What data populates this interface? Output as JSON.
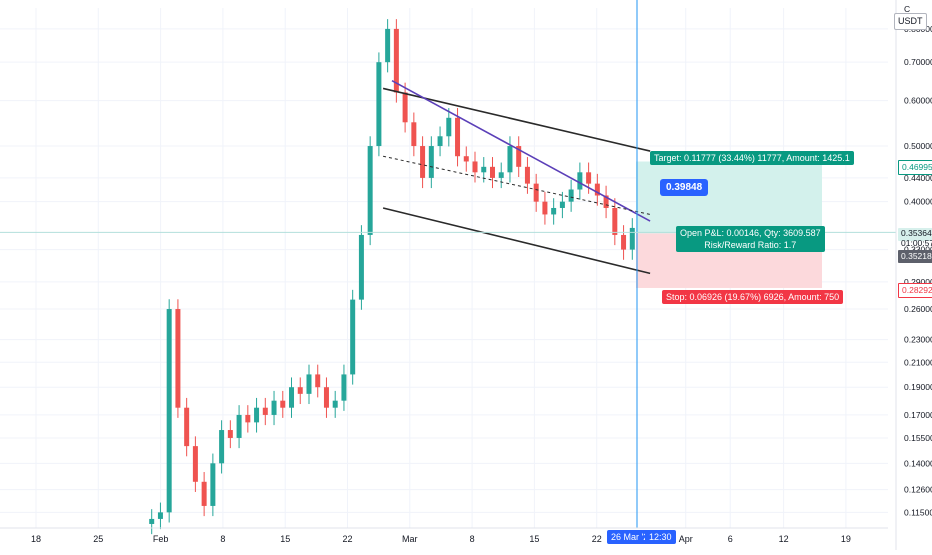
{
  "currency": "USDT",
  "currency_symbol": "C",
  "price_axis_ticks": [
    "0.80000",
    "0.70000",
    "0.60000",
    "0.50000",
    "0.44000",
    "0.40000",
    "0.33000",
    "0.29000",
    "0.26000",
    "0.23000",
    "0.21000",
    "0.19000",
    "0.17000",
    "0.15500",
    "0.14000",
    "0.12600",
    "0.11500"
  ],
  "time_axis_ticks": [
    "18",
    "25",
    "Feb",
    "8",
    "15",
    "22",
    "Mar",
    "8",
    "15",
    "22",
    "Apr",
    "6",
    "12",
    "19"
  ],
  "crosshair": {
    "date_label": "26 Mar '21",
    "time_label": "12:30"
  },
  "price_tags": {
    "target": "0.46995",
    "current": "0.35364",
    "countdown": "01:00:57",
    "entry": "0.35218",
    "stop": "0.28292"
  },
  "position": {
    "target_label": "Target: 0.11777 (33.44%) 11777, Amount: 1425.1",
    "stop_label": "Stop: 0.06926 (19.67%) 6926, Amount: 750",
    "pnl_label": "Open P&L: 0.00146, Qty: 3609.587",
    "rr_label": "Risk/Reward Ratio: 1.7",
    "target_price": 0.46995,
    "entry_price": 0.35218,
    "stop_price": 0.28292
  },
  "callout_value": "0.39848",
  "colors": {
    "up": "#26a69a",
    "down": "#ef5350",
    "target_zone": "#d3f1ec",
    "stop_zone": "#fcd9dc",
    "crosshair": "#2196f3",
    "trendline": "#5b3fb8",
    "channel": "#2a2a2a",
    "accent": "#2962ff"
  },
  "chart_data": {
    "type": "candlestick",
    "pair": "USDT",
    "scale": "log",
    "ylim": [
      0.108,
      0.87
    ],
    "x_labels": [
      "18",
      "25",
      "Feb",
      "8",
      "15",
      "22",
      "Mar",
      "8",
      "15",
      "22",
      "Apr",
      "6",
      "12",
      "19"
    ],
    "series": [
      {
        "values": [
          0.112,
          0.115,
          0.26,
          0.175,
          0.15,
          0.13,
          0.118,
          0.14,
          0.16,
          0.155,
          0.17,
          0.165,
          0.175,
          0.17,
          0.18,
          0.175,
          0.19,
          0.185,
          0.2,
          0.19,
          0.175,
          0.18,
          0.2,
          0.27,
          0.35,
          0.5,
          0.7,
          0.8,
          0.62,
          0.55,
          0.5,
          0.44,
          0.5,
          0.52,
          0.56,
          0.48,
          0.47,
          0.45,
          0.46,
          0.44,
          0.45,
          0.5,
          0.46,
          0.43,
          0.4,
          0.38,
          0.39,
          0.4,
          0.42,
          0.45,
          0.43,
          0.41,
          0.39,
          0.35,
          0.33,
          0.36
        ]
      }
    ],
    "annotations": {
      "channel_upper": [
        [
          "Feb 26",
          0.63
        ],
        [
          "Mar 28",
          0.49
        ]
      ],
      "channel_lower": [
        [
          "Feb 26",
          0.39
        ],
        [
          "Mar 28",
          0.3
        ]
      ],
      "trendline": [
        [
          "Feb 27",
          0.65
        ],
        [
          "Mar 28",
          0.37
        ]
      ],
      "midline_dashed": [
        [
          "Feb 26",
          0.48
        ],
        [
          "Mar 28",
          0.38
        ]
      ]
    }
  }
}
